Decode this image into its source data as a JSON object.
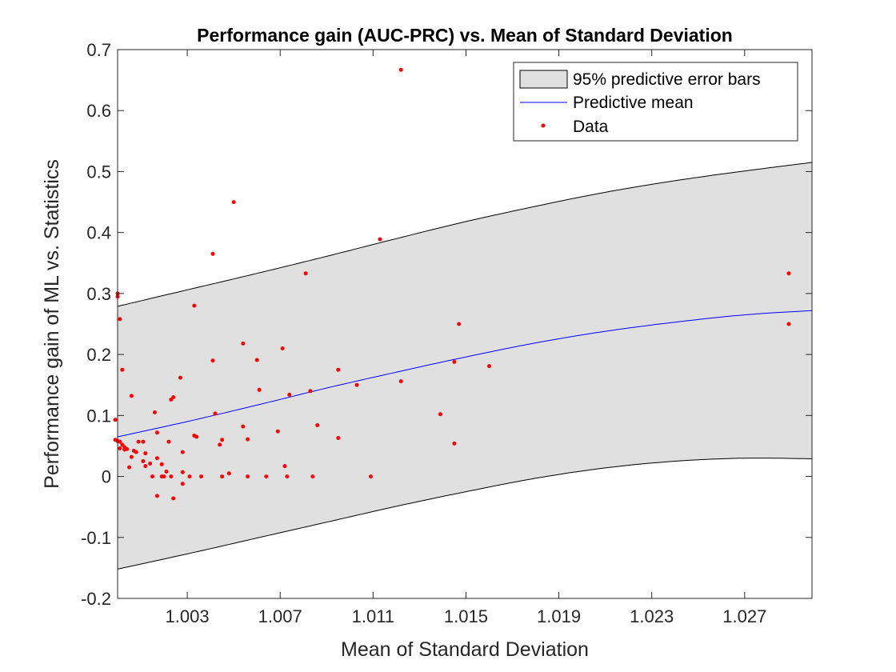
{
  "chart_data": {
    "type": "scatter",
    "title": "Performance gain (AUC-PRC) vs. Mean of Standard Deviation",
    "xlabel": "Mean of Standard Deviation",
    "ylabel": "Performance gain of ML vs. Statistics",
    "xlim": [
      1.0,
      1.0299
    ],
    "ylim": [
      -0.2,
      0.7
    ],
    "xticks": [
      1.003,
      1.007,
      1.011,
      1.015,
      1.019,
      1.023,
      1.027
    ],
    "xtick_labels": [
      "1.003",
      "1.007",
      "1.011",
      "1.015",
      "1.019",
      "1.023",
      "1.027"
    ],
    "yticks": [
      -0.2,
      -0.1,
      0,
      0.1,
      0.2,
      0.3,
      0.4,
      0.5,
      0.6,
      0.7
    ],
    "ytick_labels": [
      "-0.2",
      "-0.1",
      "0",
      "0.1",
      "0.2",
      "0.3",
      "0.4",
      "0.5",
      "0.6",
      "0.7"
    ],
    "grid": false,
    "legend_position": "top-right",
    "legend": [
      {
        "label": "95% predictive error bars",
        "kind": "band"
      },
      {
        "label": "Predictive mean",
        "kind": "line"
      },
      {
        "label": "Data",
        "kind": "marker"
      }
    ],
    "colors": {
      "band_fill": "#e0e0e0",
      "band_edge": "#000000",
      "mean_line": "#0000ff",
      "points": "#ff0000"
    },
    "series": [
      {
        "name": "Predictive mean",
        "kind": "line",
        "x": [
          1.0,
          1.003,
          1.006,
          1.009,
          1.012,
          1.015,
          1.018,
          1.021,
          1.024,
          1.027,
          1.0299
        ],
        "y": [
          0.065,
          0.09,
          0.117,
          0.145,
          0.171,
          0.196,
          0.219,
          0.238,
          0.253,
          0.265,
          0.272
        ]
      },
      {
        "name": "95% predictive error bars (upper)",
        "kind": "band-upper",
        "x": [
          1.0,
          1.003,
          1.006,
          1.009,
          1.012,
          1.015,
          1.018,
          1.021,
          1.024,
          1.027,
          1.0299
        ],
        "y": [
          0.279,
          0.306,
          0.333,
          0.361,
          0.39,
          0.418,
          0.443,
          0.466,
          0.485,
          0.501,
          0.515
        ]
      },
      {
        "name": "95% predictive error bars (lower)",
        "kind": "band-lower",
        "x": [
          1.0,
          1.003,
          1.006,
          1.009,
          1.012,
          1.015,
          1.018,
          1.021,
          1.024,
          1.027,
          1.0299
        ],
        "y": [
          -0.152,
          -0.127,
          -0.101,
          -0.075,
          -0.049,
          -0.025,
          -0.003,
          0.014,
          0.025,
          0.03,
          0.029
        ]
      },
      {
        "name": "Data",
        "kind": "points",
        "points": [
          [
            1.0122,
            0.667
          ],
          [
            1.005,
            0.45
          ],
          [
            1.0113,
            0.389
          ],
          [
            1.0041,
            0.365
          ],
          [
            1.0081,
            0.333
          ],
          [
            1.0289,
            0.333
          ],
          [
            1.0,
            0.3
          ],
          [
            1.0,
            0.295
          ],
          [
            1.0033,
            0.28
          ],
          [
            1.0001,
            0.258
          ],
          [
            1.0147,
            0.25
          ],
          [
            1.0289,
            0.25
          ],
          [
            1.0054,
            0.218
          ],
          [
            1.0071,
            0.21
          ],
          [
            1.006,
            0.191
          ],
          [
            1.0041,
            0.19
          ],
          [
            1.0145,
            0.188
          ],
          [
            1.016,
            0.181
          ],
          [
            1.0095,
            0.175
          ],
          [
            1.0002,
            0.175
          ],
          [
            1.0027,
            0.162
          ],
          [
            1.0122,
            0.156
          ],
          [
            1.0103,
            0.15
          ],
          [
            1.0061,
            0.142
          ],
          [
            1.0083,
            0.14
          ],
          [
            1.0074,
            0.134
          ],
          [
            1.0006,
            0.132
          ],
          [
            1.0024,
            0.13
          ],
          [
            1.0023,
            0.126
          ],
          [
            1.0016,
            0.105
          ],
          [
            1.0042,
            0.103
          ],
          [
            1.0139,
            0.102
          ],
          [
            0.9999,
            0.093
          ],
          [
            1.0086,
            0.084
          ],
          [
            1.0054,
            0.082
          ],
          [
            1.0069,
            0.074
          ],
          [
            1.0017,
            0.072
          ],
          [
            1.0033,
            0.067
          ],
          [
            1.0034,
            0.065
          ],
          [
            1.0045,
            0.06
          ],
          [
            1.0056,
            0.061
          ],
          [
            1.0095,
            0.063
          ],
          [
            0.9999,
            0.06
          ],
          [
            1.0,
            0.058
          ],
          [
            1.0001,
            0.057
          ],
          [
            1.0009,
            0.057
          ],
          [
            1.0011,
            0.057
          ],
          [
            1.0022,
            0.057
          ],
          [
            1.0145,
            0.054
          ],
          [
            1.0044,
            0.052
          ],
          [
            1.0002,
            0.052
          ],
          [
            1.0003,
            0.048
          ],
          [
            1.0001,
            0.046
          ],
          [
            1.0004,
            0.045
          ],
          [
            1.0003,
            0.044
          ],
          [
            1.0007,
            0.042
          ],
          [
            1.0008,
            0.04
          ],
          [
            1.0012,
            0.038
          ],
          [
            1.0028,
            0.04
          ],
          [
            1.0006,
            0.032
          ],
          [
            1.0017,
            0.03
          ],
          [
            1.0011,
            0.025
          ],
          [
            1.0014,
            0.021
          ],
          [
            1.0019,
            0.02
          ],
          [
            1.0012,
            0.017
          ],
          [
            1.0072,
            0.017
          ],
          [
            1.0005,
            0.015
          ],
          [
            1.0021,
            0.008
          ],
          [
            1.0028,
            0.007
          ],
          [
            1.0048,
            0.005
          ],
          [
            1.0019,
            0.0
          ],
          [
            1.0015,
            0.0
          ],
          [
            1.002,
            0.0
          ],
          [
            1.0023,
            0.0
          ],
          [
            1.0031,
            0.0
          ],
          [
            1.0036,
            0.0
          ],
          [
            1.0045,
            0.0
          ],
          [
            1.0056,
            0.0
          ],
          [
            1.0064,
            0.0
          ],
          [
            1.0073,
            0.0
          ],
          [
            1.0084,
            0.0
          ],
          [
            1.0109,
            0.0
          ],
          [
            1.0028,
            -0.012
          ],
          [
            1.0017,
            -0.032
          ],
          [
            1.0024,
            -0.036
          ]
        ]
      }
    ]
  }
}
